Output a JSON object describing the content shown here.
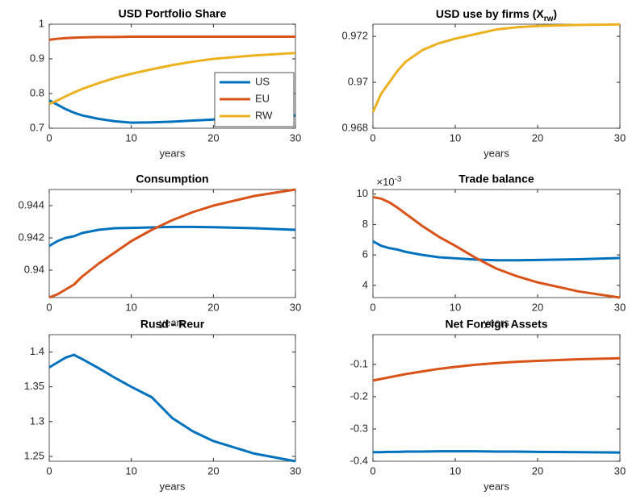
{
  "chart_data": [
    {
      "type": "line",
      "title": "USD Portfolio Share",
      "xlabel": "years",
      "x": [
        0,
        1,
        2,
        3,
        4,
        6,
        8,
        10,
        12.5,
        15,
        17.5,
        20,
        25,
        30
      ],
      "xlim": [
        0,
        30
      ],
      "xticks": [
        0,
        10,
        20,
        30
      ],
      "ylim": [
        0.7,
        1
      ],
      "yticks": [
        0.7,
        0.8,
        0.9,
        1
      ],
      "legend": "southeast",
      "series": [
        {
          "name": "US",
          "color": "#0072BD",
          "values": [
            0.78,
            0.768,
            0.755,
            0.745,
            0.737,
            0.727,
            0.72,
            0.716,
            0.717,
            0.719,
            0.722,
            0.725,
            0.731,
            0.737
          ]
        },
        {
          "name": "EU",
          "color": "#D95319",
          "values": [
            0.955,
            0.958,
            0.96,
            0.961,
            0.962,
            0.963,
            0.963,
            0.964,
            0.964,
            0.964,
            0.964,
            0.964,
            0.964,
            0.964
          ]
        },
        {
          "name": "RW",
          "color": "#EDB120",
          "values": [
            0.77,
            0.78,
            0.792,
            0.803,
            0.813,
            0.83,
            0.845,
            0.857,
            0.87,
            0.882,
            0.892,
            0.9,
            0.91,
            0.917
          ]
        }
      ]
    },
    {
      "type": "line",
      "title": [
        "USD use by firms (X",
        "rw",
        ")"
      ],
      "xlabel": "years",
      "x": [
        0,
        1,
        2,
        3,
        4,
        6,
        8,
        10,
        12.5,
        15,
        17.5,
        20,
        25,
        30
      ],
      "xlim": [
        0,
        30
      ],
      "xticks": [
        0,
        10,
        20,
        30
      ],
      "ylim": [
        0.968,
        0.97253
      ],
      "yticks": [
        0.968,
        0.97,
        0.972
      ],
      "color": "#EDB120",
      "values": [
        0.9687,
        0.9695,
        0.97,
        0.9705,
        0.9709,
        0.9714,
        0.9717,
        0.9719,
        0.9721,
        0.9723,
        0.9724,
        0.97245,
        0.9725,
        0.97252
      ]
    },
    {
      "type": "line",
      "title": "Consumption",
      "xlabel": "years",
      "x": [
        0,
        1,
        2,
        3,
        4,
        6,
        8,
        10,
        12.5,
        15,
        17.5,
        20,
        25,
        30
      ],
      "xlim": [
        0,
        30
      ],
      "xticks": [
        0,
        10,
        20,
        30
      ],
      "ylim": [
        0.9383,
        0.945
      ],
      "yticks": [
        0.94,
        0.942,
        0.944
      ],
      "series": [
        {
          "color": "#0072BD",
          "values": [
            0.9415,
            0.9418,
            0.942,
            0.9421,
            0.9423,
            0.9425,
            0.9426,
            0.94262,
            0.94265,
            0.94268,
            0.94268,
            0.94266,
            0.9426,
            0.9425
          ]
        },
        {
          "color": "#D95319",
          "values": [
            0.9383,
            0.9385,
            0.9388,
            0.9391,
            0.9396,
            0.9404,
            0.9411,
            0.9418,
            0.9425,
            0.9431,
            0.9436,
            0.944,
            0.9446,
            0.945
          ]
        }
      ]
    },
    {
      "type": "line",
      "title": "Trade balance",
      "xlabel": "years",
      "y_exponent": [
        "×10",
        "-3"
      ],
      "x": [
        0,
        1,
        2,
        3,
        4,
        6,
        8,
        10,
        12.5,
        15,
        17.5,
        20,
        25,
        30
      ],
      "xlim": [
        0,
        30
      ],
      "xticks": [
        0,
        10,
        20,
        30
      ],
      "ylim": [
        3.2,
        10.3
      ],
      "yticks": [
        4,
        6,
        8,
        10
      ],
      "series": [
        {
          "color": "#0072BD",
          "values": [
            6.9,
            6.6,
            6.45,
            6.35,
            6.2,
            6.0,
            5.85,
            5.78,
            5.7,
            5.65,
            5.65,
            5.67,
            5.72,
            5.8
          ]
        },
        {
          "color": "#D95319",
          "values": [
            9.8,
            9.7,
            9.45,
            9.1,
            8.7,
            7.9,
            7.2,
            6.6,
            5.8,
            5.1,
            4.6,
            4.2,
            3.6,
            3.2
          ]
        }
      ]
    },
    {
      "type": "line",
      "title": "Rusd - Reur",
      "xlabel": "years",
      "x": [
        0,
        1,
        2,
        3,
        4,
        6,
        8,
        10,
        12.5,
        15,
        17.5,
        20,
        25,
        30
      ],
      "xlim": [
        0,
        30
      ],
      "xticks": [
        0,
        10,
        20,
        30
      ],
      "ylim": [
        1.243,
        1.425
      ],
      "yticks": [
        1.25,
        1.3,
        1.35,
        1.4
      ],
      "color": "#0072BD",
      "values": [
        1.378,
        1.385,
        1.392,
        1.396,
        1.39,
        1.377,
        1.363,
        1.35,
        1.335,
        1.305,
        1.286,
        1.272,
        1.254,
        1.243
      ]
    },
    {
      "type": "line",
      "title": "Net Foreign Assets",
      "xlabel": "years",
      "x": [
        0,
        1,
        2,
        3,
        4,
        6,
        8,
        10,
        12.5,
        15,
        17.5,
        20,
        25,
        30
      ],
      "xlim": [
        0,
        30
      ],
      "xticks": [
        0,
        10,
        20,
        30
      ],
      "ylim": [
        -0.4,
        -0.008
      ],
      "yticks": [
        -0.4,
        -0.3,
        -0.2,
        -0.1
      ],
      "series": [
        {
          "color": "#0072BD",
          "values": [
            -0.372,
            -0.372,
            -0.371,
            -0.371,
            -0.37,
            -0.37,
            -0.369,
            -0.369,
            -0.369,
            -0.37,
            -0.37,
            -0.371,
            -0.372,
            -0.373
          ]
        },
        {
          "color": "#D95319",
          "values": [
            -0.15,
            -0.145,
            -0.14,
            -0.135,
            -0.13,
            -0.122,
            -0.114,
            -0.108,
            -0.101,
            -0.096,
            -0.092,
            -0.089,
            -0.084,
            -0.081
          ]
        }
      ]
    }
  ]
}
